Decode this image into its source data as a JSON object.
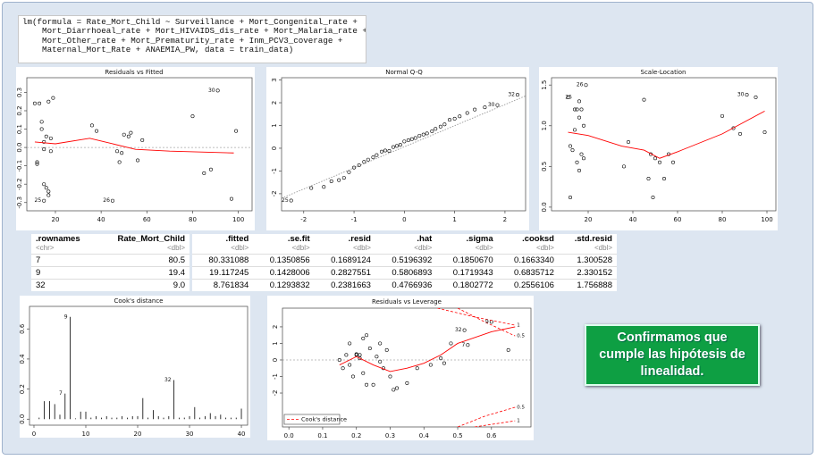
{
  "code": [
    "lm(formula = Rate_Mort_Child ~ Surveillance + Mort_Congenital_rate +",
    "    Mort_Diarrhoeal_rate + Mort_HIVAIDS_dis_rate + Mort_Malaria_rate +",
    "    Mort_Other_rate + Mort_Prematurity_rate + Inm_PCV3_coverage +",
    "    Maternal_Mort_Rate + ANAEMIA_PW, data = train_data)"
  ],
  "chart_data": [
    {
      "type": "scatter",
      "title": "Residuals vs Fitted",
      "xlim": [
        7.5,
        106
      ],
      "ylim": [
        -0.345,
        0.38
      ],
      "xticks": [
        20,
        40,
        60,
        80,
        100
      ],
      "yticks": [
        -0.3,
        -0.2,
        -0.1,
        {
          "value": 0,
          "label": "0.0"
        },
        0.1,
        0.2,
        0.3
      ],
      "hline": 0,
      "series": [
        {
          "style": "points",
          "color": "#000000",
          "x": [
            11,
            13,
            12,
            12,
            14,
            14,
            15,
            15,
            15,
            16,
            15,
            17,
            17,
            18,
            17,
            19,
            16,
            18,
            36,
            38,
            45,
            47,
            48,
            49,
            50,
            52,
            53,
            56,
            58,
            80,
            85,
            88,
            91,
            97,
            99
          ],
          "values": [
            0.24,
            0.24,
            -0.09,
            -0.08,
            0.14,
            0.1,
            0.03,
            -0.01,
            -0.2,
            -0.22,
            -0.29,
            -0.26,
            -0.24,
            0.05,
            0.25,
            0.27,
            0.06,
            -0.02,
            0.12,
            0.09,
            -0.29,
            -0.02,
            -0.08,
            -0.03,
            0.07,
            0.06,
            0.08,
            -0.07,
            0.04,
            0.17,
            -0.14,
            -0.12,
            0.31,
            -0.28,
            0.09
          ]
        },
        {
          "style": "line",
          "color": "#ff0000",
          "x": [
            11,
            20,
            35,
            45,
            55,
            70,
            98
          ],
          "values": [
            0.03,
            0.02,
            0.05,
            0.02,
            -0.01,
            -0.02,
            -0.03
          ]
        }
      ],
      "point_labels": [
        {
          "text": "30",
          "x": 91,
          "y": 0.31
        },
        {
          "text": "25",
          "x": 15,
          "y": -0.29
        },
        {
          "text": "26",
          "x": 45,
          "y": -0.29
        }
      ]
    },
    {
      "type": "scatter",
      "title": "Normal Q-Q",
      "xlim": [
        -2.44,
        2.41
      ],
      "ylim": [
        -2.75,
        3.1
      ],
      "xticks": [
        -2,
        -1,
        0,
        1,
        2
      ],
      "yticks": [
        -2,
        -1,
        0,
        1,
        2,
        3
      ],
      "series": [
        {
          "style": "points",
          "color": "#000000",
          "x": [
            -2.25,
            -1.85,
            -1.6,
            -1.45,
            -1.3,
            -1.2,
            -1.1,
            -1.0,
            -0.9,
            -0.8,
            -0.72,
            -0.62,
            -0.55,
            -0.45,
            -0.38,
            -0.3,
            -0.22,
            -0.15,
            -0.08,
            0.0,
            0.08,
            0.15,
            0.22,
            0.3,
            0.38,
            0.45,
            0.55,
            0.62,
            0.72,
            0.8,
            0.9,
            1.0,
            1.1,
            1.25,
            1.4,
            1.6,
            1.85,
            2.25
          ],
          "values": [
            -2.3,
            -1.75,
            -1.7,
            -1.45,
            -1.4,
            -1.3,
            -1.05,
            -0.85,
            -0.75,
            -0.6,
            -0.5,
            -0.4,
            -0.3,
            -0.15,
            -0.1,
            -0.12,
            0.05,
            0.1,
            0.15,
            0.3,
            0.35,
            0.4,
            0.45,
            0.55,
            0.6,
            0.65,
            0.75,
            0.85,
            0.95,
            1.05,
            1.25,
            1.3,
            1.4,
            1.55,
            1.7,
            1.8,
            1.9,
            2.35
          ]
        },
        {
          "style": "dotted",
          "color": "#999999",
          "x": [
            -2.44,
            2.41
          ],
          "values": [
            -2.2,
            2.3
          ]
        }
      ],
      "point_labels": [
        {
          "text": "25",
          "x": -2.25,
          "y": -2.3
        },
        {
          "text": "30",
          "x": 1.85,
          "y": 1.9
        },
        {
          "text": "32",
          "x": 2.25,
          "y": 2.35
        }
      ]
    },
    {
      "type": "scatter",
      "title": "Scale-Location",
      "xlim": [
        3.6,
        104
      ],
      "ylim": [
        -0.045,
        1.59
      ],
      "xticks": [
        20,
        40,
        60,
        80,
        100
      ],
      "yticks": [
        {
          "value": 0,
          "label": "0.0"
        },
        0.5,
        {
          "value": 1,
          "label": "1.0"
        },
        1.5
      ],
      "series": [
        {
          "style": "points",
          "color": "#000000",
          "x": [
            11,
            12,
            12,
            13,
            14,
            14,
            15,
            15,
            16,
            16,
            16,
            17,
            17,
            18,
            18,
            19,
            36,
            38,
            45,
            47,
            48,
            49,
            50,
            52,
            54,
            56,
            58,
            80,
            85,
            88,
            91,
            95,
            99
          ],
          "values": [
            1.35,
            0.12,
            0.75,
            0.7,
            1.2,
            0.95,
            1.2,
            0.55,
            1.3,
            1.1,
            0.45,
            1.2,
            0.65,
            0.6,
            1.0,
            1.5,
            0.5,
            0.8,
            1.32,
            0.35,
            0.65,
            0.12,
            0.6,
            0.55,
            0.35,
            0.65,
            0.55,
            1.12,
            0.97,
            0.9,
            1.38,
            1.35,
            0.92
          ]
        },
        {
          "style": "line",
          "color": "#ff0000",
          "x": [
            11,
            20,
            35,
            45,
            52,
            60,
            80,
            99
          ],
          "values": [
            0.92,
            0.88,
            0.75,
            0.7,
            0.6,
            0.68,
            0.9,
            1.18
          ]
        }
      ],
      "point_labels": [
        {
          "text": "25",
          "x": 14,
          "y": 1.35
        },
        {
          "text": "26",
          "x": 19,
          "y": 1.5
        },
        {
          "text": "30",
          "x": 91,
          "y": 1.38
        }
      ]
    },
    {
      "type": "bar",
      "title": "Cook's distance",
      "xlim": [
        -0.86,
        41.2
      ],
      "ylim": [
        -0.04,
        0.75
      ],
      "xticks": [
        0,
        10,
        20,
        30,
        40
      ],
      "yticks": [
        {
          "value": 0,
          "label": "0.0"
        },
        0.2,
        0.4,
        0.6
      ],
      "color": "#000000",
      "x": [
        1,
        2,
        3,
        4,
        5,
        6,
        7,
        8,
        9,
        10,
        11,
        12,
        13,
        14,
        15,
        16,
        17,
        18,
        19,
        20,
        21,
        22,
        23,
        24,
        25,
        26,
        27,
        28,
        29,
        30,
        31,
        32,
        33,
        34,
        35,
        36,
        37,
        38,
        39,
        40
      ],
      "values": [
        0.01,
        0.12,
        0.12,
        0.1,
        0.03,
        0.17,
        0.68,
        0.005,
        0.05,
        0.05,
        0.01,
        0.02,
        0.01,
        0.02,
        0.01,
        0.01,
        0.02,
        0.01,
        0.02,
        0.02,
        0.14,
        0.01,
        0.06,
        0.02,
        0.01,
        0.02,
        0.26,
        0.01,
        0.01,
        0.02,
        0.08,
        0.01,
        0.02,
        0.04,
        0.02,
        0.03,
        0.01,
        0.01,
        0.01,
        0.07
      ],
      "point_labels": [
        {
          "text": "7",
          "x": 6,
          "y": 0.17
        },
        {
          "text": "9",
          "x": 7,
          "y": 0.68
        },
        {
          "text": "32",
          "x": 27,
          "y": 0.26
        }
      ]
    },
    {
      "type": "scatter",
      "title": "Residuals vs Leverage",
      "xlim": [
        -0.019,
        0.717
      ],
      "ylim": [
        -4.05,
        3.13
      ],
      "xticks": [
        {
          "value": 0,
          "label": "0.0"
        },
        0.1,
        0.2,
        0.3,
        0.4,
        0.5,
        0.6
      ],
      "yticks": [
        -2,
        -1,
        0,
        1,
        2
      ],
      "hline": 0,
      "series": [
        {
          "style": "points",
          "color": "#000000",
          "x": [
            0.15,
            0.16,
            0.17,
            0.18,
            0.18,
            0.19,
            0.2,
            0.2,
            0.21,
            0.21,
            0.22,
            0.22,
            0.23,
            0.23,
            0.24,
            0.25,
            0.26,
            0.27,
            0.27,
            0.28,
            0.29,
            0.3,
            0.31,
            0.32,
            0.35,
            0.38,
            0.42,
            0.45,
            0.46,
            0.48,
            0.52,
            0.53,
            0.6,
            0.65
          ],
          "values": [
            0.0,
            -0.5,
            0.3,
            1.0,
            -0.3,
            -1.0,
            0.3,
            0.35,
            0.1,
            0.3,
            1.3,
            -0.8,
            1.5,
            -1.5,
            0.7,
            -1.5,
            0.2,
            1.0,
            -0.1,
            -0.5,
            0.6,
            -1.0,
            -1.8,
            -1.7,
            -1.4,
            -0.5,
            -0.3,
            0.1,
            -0.2,
            1.0,
            1.8,
            0.9,
            2.3,
            0.6
          ]
        },
        {
          "style": "line",
          "color": "#ff0000",
          "x": [
            0.15,
            0.2,
            0.25,
            0.3,
            0.35,
            0.4,
            0.45,
            0.5,
            0.6,
            0.67
          ],
          "values": [
            -0.3,
            0.2,
            -0.3,
            -0.7,
            -0.5,
            -0.2,
            0.3,
            1.0,
            1.7,
            2.0
          ]
        }
      ],
      "contours": [
        {
          "label": "1",
          "color": "#ff0000",
          "x": [
            0.44,
            0.55,
            0.67
          ],
          "values": [
            3.13,
            2.6,
            2.1
          ]
        },
        {
          "label": "0.5",
          "color": "#ff0000",
          "x": [
            0.5,
            0.58,
            0.67
          ],
          "values": [
            3.13,
            2.3,
            1.45
          ]
        },
        {
          "label": "0.5",
          "color": "#ff0000",
          "x": [
            0.5,
            0.58,
            0.67
          ],
          "values": [
            -4.05,
            -3.4,
            -2.86
          ]
        },
        {
          "label": "1",
          "color": "#ff0000",
          "x": [
            0.55,
            0.67
          ],
          "values": [
            -4.05,
            -3.68
          ]
        }
      ],
      "legend": "Cook's distance",
      "point_labels": [
        {
          "text": "9",
          "x": 0.6,
          "y": 2.3
        },
        {
          "text": "32",
          "x": 0.52,
          "y": 1.8
        },
        {
          "text": "7",
          "x": 0.53,
          "y": 0.9
        }
      ]
    }
  ],
  "table_left": {
    "columns": [
      {
        "name": ".rownames",
        "type": "<chr>"
      },
      {
        "name": "Rate_Mort_Child",
        "type": "<dbl>"
      }
    ],
    "rows": [
      [
        "7",
        "80.5"
      ],
      [
        "9",
        "19.4"
      ],
      [
        "32",
        "9.0"
      ]
    ]
  },
  "table_right": {
    "columns": [
      {
        "name": ".fitted",
        "type": "<dbl>"
      },
      {
        "name": ".se.fit",
        "type": "<dbl>"
      },
      {
        "name": ".resid",
        "type": "<dbl>"
      },
      {
        "name": ".hat",
        "type": "<dbl>"
      },
      {
        "name": ".sigma",
        "type": "<dbl>"
      },
      {
        "name": ".cooksd",
        "type": "<dbl>"
      },
      {
        "name": ".std.resid",
        "type": "<dbl>"
      }
    ],
    "rows": [
      [
        "80.331088",
        "0.1350856",
        "0.1689124",
        "0.5196392",
        "0.1850670",
        "0.1663340",
        "1.300528"
      ],
      [
        "19.117245",
        "0.1428006",
        "0.2827551",
        "0.5806893",
        "0.1719343",
        "0.6835712",
        "2.330152"
      ],
      [
        "8.761834",
        "0.1293832",
        "0.2381663",
        "0.4766936",
        "0.1802772",
        "0.2556106",
        "1.756888"
      ]
    ]
  },
  "note": "Confirmamos que cumple las hipótesis de linealidad."
}
